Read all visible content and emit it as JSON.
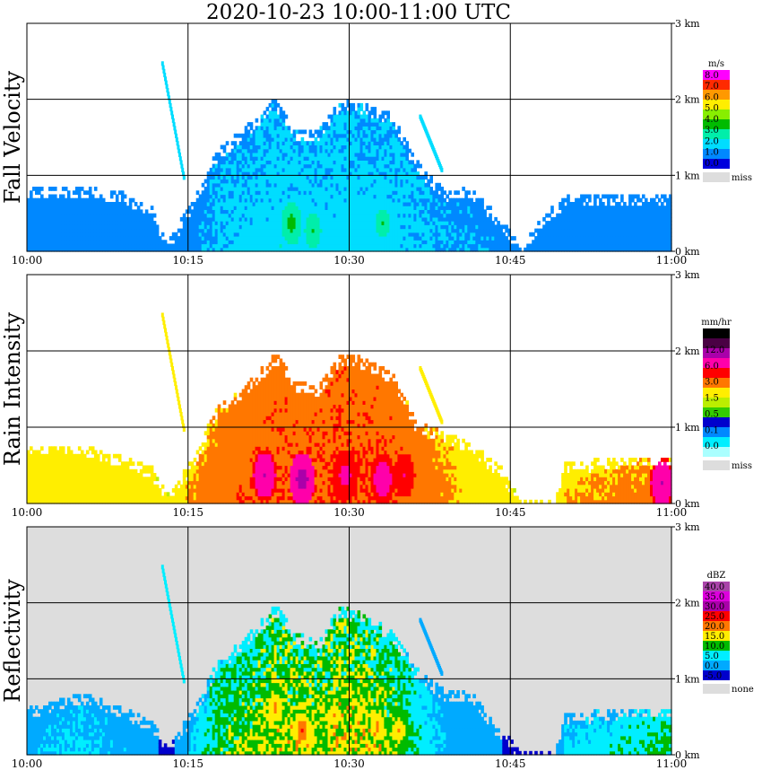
{
  "title": "2020-10-23   10:00-11:00 UTC",
  "x_tick_labels": [
    "10:00",
    "10:15",
    "10:30",
    "10:45",
    "11:00"
  ],
  "y_tick_labels": [
    "0 km",
    "1 km",
    "2 km",
    "3 km"
  ],
  "chart_data": [
    {
      "type": "heatmap",
      "ylabel": "Fall Velocity",
      "x_range": [
        "10:00",
        "11:00"
      ],
      "ylim_km": [
        0,
        3.0
      ],
      "grid": true,
      "legend_placement": "right",
      "colorbar": {
        "unit": "m/s",
        "levels": [
          "8.0",
          "7.0",
          "6.0",
          "5.0",
          "4.0",
          "3.0",
          "2.0",
          "1.0",
          "0.0"
        ],
        "colors": [
          "#ff00ff",
          "#ff2a00",
          "#ff9900",
          "#ffee00",
          "#88ee00",
          "#00bb00",
          "#00eeaa",
          "#00ddff",
          "#0088ff",
          "#0000dd"
        ],
        "missing_label": "miss",
        "missing_color": "#dddddd"
      },
      "background": "#ffffff",
      "profile": [
        {
          "t": 0,
          "top": 0.85,
          "v": 0.7
        },
        {
          "t": 5,
          "top": 0.85,
          "v": 0.7
        },
        {
          "t": 9,
          "top": 0.75,
          "v": 0.7
        },
        {
          "t": 11.5,
          "top": 0.55,
          "v": 0.6
        },
        {
          "t": 13,
          "top": 0.1,
          "v": 0.5
        },
        {
          "t": 15.5,
          "top": 0.7,
          "v": 0.8
        },
        {
          "t": 17.5,
          "top": 1.3,
          "v": 1.2
        },
        {
          "t": 20,
          "top": 1.6,
          "v": 1.4
        },
        {
          "t": 23,
          "top": 2.0,
          "v": 1.6
        },
        {
          "t": 25,
          "top": 1.6,
          "v": 1.6
        },
        {
          "t": 27,
          "top": 1.6,
          "v": 1.5
        },
        {
          "t": 29,
          "top": 2.0,
          "v": 1.6
        },
        {
          "t": 31,
          "top": 1.95,
          "v": 1.6
        },
        {
          "t": 34,
          "top": 1.8,
          "v": 1.5
        },
        {
          "t": 36,
          "top": 1.2,
          "v": 1.3
        },
        {
          "t": 39,
          "top": 0.75,
          "v": 1.0
        },
        {
          "t": 41,
          "top": 0.85,
          "v": 1.0
        },
        {
          "t": 44,
          "top": 0.4,
          "v": 0.8
        },
        {
          "t": 46,
          "top": 0.05,
          "v": 0.5
        },
        {
          "t": 47.5,
          "top": 0.4,
          "v": 0.6
        },
        {
          "t": 50,
          "top": 0.7,
          "v": 0.7
        },
        {
          "t": 55,
          "top": 0.75,
          "v": 0.7
        },
        {
          "t": 60,
          "top": 0.7,
          "v": 0.7
        }
      ],
      "plumes": [
        {
          "t0": 12.5,
          "h0": 2.5,
          "t1": 14.5,
          "h1": 1.0,
          "v": 1.8
        },
        {
          "t0": 36.5,
          "h0": 1.8,
          "t1": 38.5,
          "h1": 1.1,
          "v": 1.6
        }
      ],
      "cores": [
        {
          "t": 24.5,
          "h": 0.35,
          "v": 3.8
        },
        {
          "t": 26.5,
          "h": 0.25,
          "v": 3.2
        },
        {
          "t": 33.0,
          "h": 0.35,
          "v": 3.0
        }
      ]
    },
    {
      "type": "heatmap",
      "ylabel": "Rain Intensity",
      "x_range": [
        "10:00",
        "11:00"
      ],
      "ylim_km": [
        0,
        3.0
      ],
      "grid": true,
      "legend_placement": "right",
      "colorbar": {
        "unit": "mm/hr",
        "levels": [
          "48.0",
          "12.0",
          "6.0",
          "3.0",
          "1.5",
          "0.5",
          "0.1",
          "0.0"
        ],
        "colors": [
          "#000000",
          "#4a0044",
          "#aa00aa",
          "#ff00aa",
          "#ff0000",
          "#ff7700",
          "#ffee00",
          "#bbee00",
          "#33cc00",
          "#0000cc",
          "#0088ff",
          "#00eeff",
          "#aaffff"
        ],
        "missing_label": "miss",
        "missing_color": "#dddddd"
      },
      "background": "#ffffff",
      "profile": [
        {
          "t": 0,
          "top": 0.75,
          "v": 0.3
        },
        {
          "t": 5,
          "top": 0.75,
          "v": 0.4
        },
        {
          "t": 9,
          "top": 0.6,
          "v": 0.3
        },
        {
          "t": 11.5,
          "top": 0.45,
          "v": 0.25
        },
        {
          "t": 13,
          "top": 0.1,
          "v": 0.2
        },
        {
          "t": 15.5,
          "top": 0.6,
          "v": 0.6
        },
        {
          "t": 17.5,
          "top": 1.25,
          "v": 1.0
        },
        {
          "t": 20,
          "top": 1.5,
          "v": 1.3
        },
        {
          "t": 23,
          "top": 1.95,
          "v": 1.5
        },
        {
          "t": 25,
          "top": 1.6,
          "v": 1.5
        },
        {
          "t": 27,
          "top": 1.5,
          "v": 1.5
        },
        {
          "t": 29,
          "top": 1.95,
          "v": 1.6
        },
        {
          "t": 31,
          "top": 1.9,
          "v": 1.6
        },
        {
          "t": 34,
          "top": 1.7,
          "v": 1.4
        },
        {
          "t": 36,
          "top": 1.1,
          "v": 1.2
        },
        {
          "t": 39,
          "top": 0.9,
          "v": 0.6
        },
        {
          "t": 41,
          "top": 0.8,
          "v": 0.35
        },
        {
          "t": 44,
          "top": 0.45,
          "v": 0.25
        },
        {
          "t": 46,
          "top": 0.05,
          "v": 0.2
        },
        {
          "t": 49,
          "top": 0.05,
          "v": 0.2
        },
        {
          "t": 50,
          "top": 0.5,
          "v": 0.5
        },
        {
          "t": 55,
          "top": 0.6,
          "v": 0.7
        },
        {
          "t": 60,
          "top": 0.6,
          "v": 1.0
        }
      ],
      "plumes": [
        {
          "t0": 12.5,
          "h0": 2.5,
          "t1": 14.5,
          "h1": 1.0,
          "v": 0.45
        },
        {
          "t0": 36.5,
          "h0": 1.8,
          "t1": 38.5,
          "h1": 1.1,
          "v": 0.3
        }
      ],
      "cores": [
        {
          "t": 22.0,
          "h": 0.35,
          "v": 6.0
        },
        {
          "t": 25.5,
          "h": 0.3,
          "v": 8.0
        },
        {
          "t": 29.5,
          "h": 0.35,
          "v": 4.0
        },
        {
          "t": 33.0,
          "h": 0.3,
          "v": 5.0
        },
        {
          "t": 35.0,
          "h": 0.35,
          "v": 3.0
        },
        {
          "t": 59.0,
          "h": 0.25,
          "v": 6.0
        }
      ]
    },
    {
      "type": "heatmap",
      "ylabel": "Reflectivity",
      "x_range": [
        "10:00",
        "11:00"
      ],
      "ylim_km": [
        0,
        3.0
      ],
      "grid": true,
      "legend_placement": "right",
      "colorbar": {
        "unit": "dBZ",
        "levels": [
          "40.0",
          "35.0",
          "30.0",
          "25.0",
          "20.0",
          "15.0",
          "10.0",
          "5.0",
          "0.0",
          "-5.0"
        ],
        "colors": [
          "#aa44aa",
          "#dd00dd",
          "#aa00aa",
          "#ff0000",
          "#ff7700",
          "#ffee00",
          "#00bb00",
          "#00eeff",
          "#00aaff",
          "#0000cc"
        ],
        "missing_label": "none",
        "missing_color": "#dddddd"
      },
      "background": "#dddddd",
      "profile": [
        {
          "t": 0,
          "top": 0.6,
          "v": 4.0
        },
        {
          "t": 5,
          "top": 0.8,
          "v": 6.0
        },
        {
          "t": 9,
          "top": 0.6,
          "v": 4.0
        },
        {
          "t": 11.5,
          "top": 0.4,
          "v": 1.0
        },
        {
          "t": 13,
          "top": 0.1,
          "v": -2.0
        },
        {
          "t": 15.5,
          "top": 0.6,
          "v": 6.0
        },
        {
          "t": 17.5,
          "top": 1.2,
          "v": 12.0
        },
        {
          "t": 20,
          "top": 1.5,
          "v": 14.0
        },
        {
          "t": 23,
          "top": 1.95,
          "v": 16.0
        },
        {
          "t": 25,
          "top": 1.6,
          "v": 17.0
        },
        {
          "t": 27,
          "top": 1.45,
          "v": 16.0
        },
        {
          "t": 29,
          "top": 1.95,
          "v": 17.0
        },
        {
          "t": 31,
          "top": 1.85,
          "v": 18.0
        },
        {
          "t": 34,
          "top": 1.6,
          "v": 14.0
        },
        {
          "t": 36,
          "top": 1.15,
          "v": 10.0
        },
        {
          "t": 39,
          "top": 0.8,
          "v": 4.0
        },
        {
          "t": 41,
          "top": 0.85,
          "v": 2.0
        },
        {
          "t": 44,
          "top": 0.3,
          "v": 0.0
        },
        {
          "t": 46,
          "top": 0.05,
          "v": -2.0
        },
        {
          "t": 49,
          "top": 0.05,
          "v": -2.0
        },
        {
          "t": 50,
          "top": 0.5,
          "v": 6.0
        },
        {
          "t": 55,
          "top": 0.6,
          "v": 9.0
        },
        {
          "t": 60,
          "top": 0.6,
          "v": 12.0
        }
      ],
      "plumes": [
        {
          "t0": 12.5,
          "h0": 2.5,
          "t1": 14.5,
          "h1": 1.0,
          "v": 6.0
        },
        {
          "t0": 36.5,
          "h0": 1.8,
          "t1": 38.5,
          "h1": 1.1,
          "v": 4.0
        }
      ],
      "cores": [
        {
          "t": 23.0,
          "h": 0.6,
          "v": 22.0
        },
        {
          "t": 25.5,
          "h": 0.3,
          "v": 26.0
        },
        {
          "t": 28.5,
          "h": 0.5,
          "v": 21.0
        },
        {
          "t": 32.5,
          "h": 0.35,
          "v": 22.0
        },
        {
          "t": 34.5,
          "h": 0.3,
          "v": 21.0
        }
      ]
    }
  ]
}
